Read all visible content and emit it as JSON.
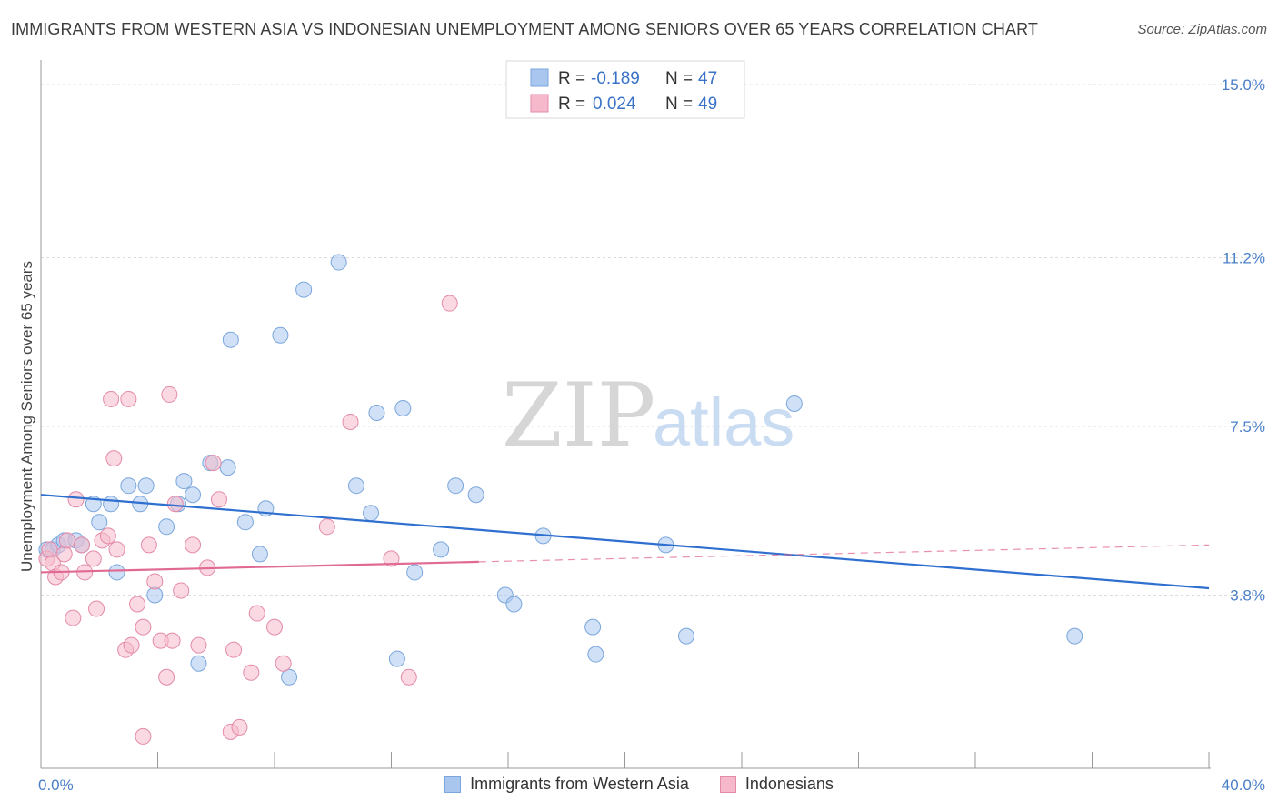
{
  "header": {
    "title": "IMMIGRANTS FROM WESTERN ASIA VS INDONESIAN UNEMPLOYMENT AMONG SENIORS OVER 65 YEARS CORRELATION CHART",
    "source": "Source: ZipAtlas.com"
  },
  "watermark": {
    "zip": "ZIP",
    "atlas": "atlas"
  },
  "stats": [
    {
      "r_label": "R = ",
      "r_value": "-0.189",
      "n_label": "N = ",
      "n_value": "47",
      "color": "#a9c7ee"
    },
    {
      "r_label": "R = ",
      "r_value": "0.024",
      "n_label": "N = ",
      "n_value": "49",
      "color": "#f5b9cb"
    }
  ],
  "legend": {
    "items": [
      {
        "label": "Immigrants from Western Asia",
        "color": "#a9c7ee"
      },
      {
        "label": "Indonesians",
        "color": "#f5b9cb"
      }
    ]
  },
  "chart_data": {
    "type": "scatter",
    "title": "IMMIGRANTS FROM WESTERN ASIA VS INDONESIAN UNEMPLOYMENT AMONG SENIORS OVER 65 YEARS CORRELATION CHART",
    "xlabel": "",
    "ylabel": "Unemployment Among Seniors over 65 years",
    "xlim": [
      0,
      40
    ],
    "ylim": [
      0,
      15.3
    ],
    "x_tick_labels": [
      {
        "value": 0,
        "label": "0.0%"
      },
      {
        "value": 40,
        "label": "40.0%"
      }
    ],
    "y_tick_labels": [
      {
        "value": 3.8,
        "label": "3.8%"
      },
      {
        "value": 7.5,
        "label": "7.5%"
      },
      {
        "value": 11.2,
        "label": "11.2%"
      },
      {
        "value": 15.0,
        "label": "15.0%"
      }
    ],
    "grid": true,
    "series": [
      {
        "name": "Immigrants from Western Asia",
        "color": "#a9c7ee",
        "stroke": "#7aa6dc",
        "trend_color": "#2f6fcf",
        "trend": {
          "x0": 0,
          "y0": 6.0,
          "x1": 40,
          "y1": 3.95
        },
        "points": [
          [
            0.2,
            4.8
          ],
          [
            0.4,
            4.8
          ],
          [
            0.6,
            4.9
          ],
          [
            0.8,
            5.0
          ],
          [
            1.2,
            5.0
          ],
          [
            1.4,
            4.9
          ],
          [
            1.8,
            5.8
          ],
          [
            2.0,
            5.4
          ],
          [
            2.4,
            5.8
          ],
          [
            2.6,
            4.3
          ],
          [
            3.0,
            6.2
          ],
          [
            3.4,
            5.8
          ],
          [
            3.6,
            6.2
          ],
          [
            3.9,
            3.8
          ],
          [
            4.3,
            5.3
          ],
          [
            4.7,
            5.8
          ],
          [
            4.9,
            6.3
          ],
          [
            5.2,
            6.0
          ],
          [
            5.4,
            2.3
          ],
          [
            5.8,
            6.7
          ],
          [
            6.4,
            6.6
          ],
          [
            6.5,
            9.4
          ],
          [
            7.0,
            5.4
          ],
          [
            7.5,
            4.7
          ],
          [
            7.7,
            5.7
          ],
          [
            8.2,
            9.5
          ],
          [
            8.5,
            2.0
          ],
          [
            9.0,
            10.5
          ],
          [
            10.2,
            11.1
          ],
          [
            10.8,
            6.2
          ],
          [
            11.3,
            5.6
          ],
          [
            11.5,
            7.8
          ],
          [
            12.2,
            2.4
          ],
          [
            12.4,
            7.9
          ],
          [
            12.8,
            4.3
          ],
          [
            13.7,
            4.8
          ],
          [
            14.2,
            6.2
          ],
          [
            14.9,
            6.0
          ],
          [
            15.9,
            3.8
          ],
          [
            16.2,
            3.6
          ],
          [
            17.2,
            5.1
          ],
          [
            18.9,
            3.1
          ],
          [
            19.0,
            2.5
          ],
          [
            21.4,
            4.9
          ],
          [
            22.1,
            2.9
          ],
          [
            25.8,
            8.0
          ],
          [
            35.4,
            2.9
          ]
        ]
      },
      {
        "name": "Indonesians",
        "color": "#f5b9cb",
        "stroke": "#e48aa8",
        "trend_color": "#e06a94",
        "trend": {
          "x0": 0,
          "y0": 4.3,
          "x1": 15,
          "y1": 4.53
        },
        "trend_dashed": {
          "x0": 15,
          "y0": 4.53,
          "x1": 40,
          "y1": 4.9
        },
        "points": [
          [
            0.2,
            4.6
          ],
          [
            0.3,
            4.8
          ],
          [
            0.4,
            4.5
          ],
          [
            0.5,
            4.2
          ],
          [
            0.7,
            4.3
          ],
          [
            0.8,
            4.7
          ],
          [
            0.9,
            5.0
          ],
          [
            1.1,
            3.3
          ],
          [
            1.2,
            5.9
          ],
          [
            1.4,
            4.9
          ],
          [
            1.5,
            4.3
          ],
          [
            1.8,
            4.6
          ],
          [
            1.9,
            3.5
          ],
          [
            2.1,
            5.0
          ],
          [
            2.3,
            5.1
          ],
          [
            2.4,
            8.1
          ],
          [
            2.5,
            6.8
          ],
          [
            2.6,
            4.8
          ],
          [
            2.9,
            2.6
          ],
          [
            3.0,
            8.1
          ],
          [
            3.1,
            2.7
          ],
          [
            3.3,
            3.6
          ],
          [
            3.5,
            3.1
          ],
          [
            3.5,
            0.7
          ],
          [
            3.7,
            4.9
          ],
          [
            3.9,
            4.1
          ],
          [
            4.1,
            2.8
          ],
          [
            4.3,
            2.0
          ],
          [
            4.4,
            8.2
          ],
          [
            4.5,
            2.8
          ],
          [
            4.6,
            5.8
          ],
          [
            4.8,
            3.9
          ],
          [
            5.2,
            4.9
          ],
          [
            5.4,
            2.7
          ],
          [
            5.7,
            4.4
          ],
          [
            5.9,
            6.7
          ],
          [
            6.1,
            5.9
          ],
          [
            6.5,
            0.8
          ],
          [
            6.6,
            2.6
          ],
          [
            6.8,
            0.9
          ],
          [
            7.2,
            2.1
          ],
          [
            7.4,
            3.4
          ],
          [
            8.0,
            3.1
          ],
          [
            8.3,
            2.3
          ],
          [
            9.8,
            5.3
          ],
          [
            10.6,
            7.6
          ],
          [
            12.6,
            2.0
          ],
          [
            14.0,
            10.2
          ],
          [
            12.0,
            4.6
          ]
        ]
      }
    ]
  }
}
